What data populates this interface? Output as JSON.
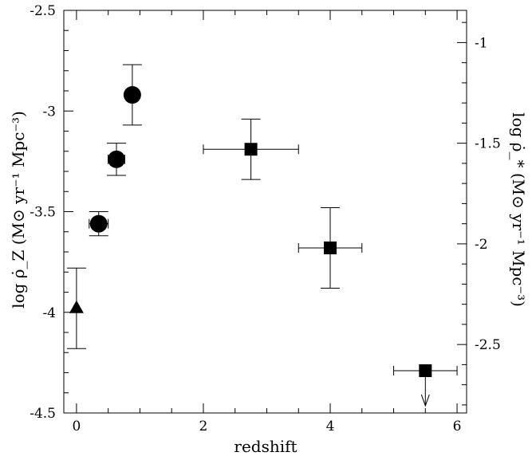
{
  "chart_data": {
    "type": "scatter",
    "xlabel": "redshift",
    "ylabel_left": "log ρ̇_Z (M⊙ yr⁻¹ Mpc⁻³)",
    "ylabel_right": "log ρ̇_* (M⊙ yr⁻¹ Mpc⁻³)",
    "xlim": [
      -0.2,
      6.15
    ],
    "ylim_left": [
      -4.5,
      -2.5
    ],
    "ylim_right": [
      -2.84,
      -0.84
    ],
    "x_ticks": [
      "0",
      "2",
      "4",
      "6"
    ],
    "y_left_ticks": [
      "-2.5",
      "-3",
      "-3.5",
      "-4",
      "-4.5"
    ],
    "y_right_ticks": [
      "-1",
      "-1.5",
      "-2",
      "-2.5"
    ],
    "grid": false,
    "series": [
      {
        "marker": "triangle",
        "points": [
          {
            "x": 0.0,
            "y": -3.98,
            "yerr_lo": 0.2,
            "yerr_hi": 0.2,
            "xerr_lo": 0,
            "xerr_hi": 0
          }
        ]
      },
      {
        "marker": "circle",
        "points": [
          {
            "x": 0.35,
            "y": -3.56,
            "yerr_lo": 0.06,
            "yerr_hi": 0.06,
            "xerr_lo": 0.15,
            "xerr_hi": 0.15
          },
          {
            "x": 0.63,
            "y": -3.24,
            "yerr_lo": 0.08,
            "yerr_hi": 0.08,
            "xerr_lo": 0.13,
            "xerr_hi": 0.13
          },
          {
            "x": 0.88,
            "y": -2.92,
            "yerr_lo": 0.15,
            "yerr_hi": 0.15,
            "xerr_lo": 0.1,
            "xerr_hi": 0.1
          }
        ]
      },
      {
        "marker": "square",
        "points": [
          {
            "x": 2.75,
            "y": -3.19,
            "yerr_lo": 0.15,
            "yerr_hi": 0.15,
            "xerr_lo": 0.75,
            "xerr_hi": 0.75
          },
          {
            "x": 4.0,
            "y": -3.68,
            "yerr_lo": 0.2,
            "yerr_hi": 0.2,
            "xerr_lo": 0.5,
            "xerr_hi": 0.5
          },
          {
            "x": 5.5,
            "y": -4.29,
            "yerr_lo": 0,
            "yerr_hi": 0,
            "xerr_lo": 0.5,
            "xerr_hi": 0.5,
            "upper_limit": true
          }
        ]
      }
    ]
  }
}
